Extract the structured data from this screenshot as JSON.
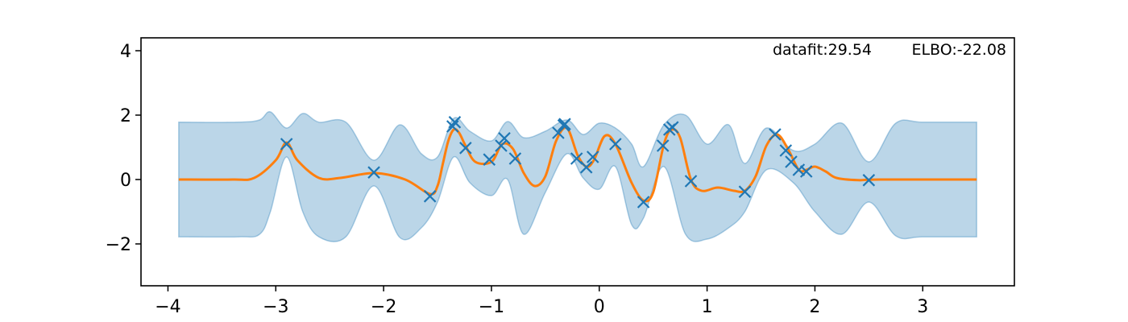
{
  "chart_data": {
    "type": "line",
    "title": "",
    "xlabel": "",
    "ylabel": "",
    "xlim": [
      -4.25,
      3.85
    ],
    "ylim": [
      -3.3,
      4.4
    ],
    "x_ticks": [
      -4,
      -3,
      -2,
      -1,
      0,
      1,
      2,
      3
    ],
    "x_tick_labels": [
      "−4",
      "−3",
      "−2",
      "−1",
      "0",
      "1",
      "2",
      "3"
    ],
    "y_ticks": [
      -2,
      0,
      2,
      4
    ],
    "y_tick_labels": [
      "−2",
      "0",
      "2",
      "4"
    ],
    "grid": false,
    "legend": "none",
    "annotations": [
      {
        "label": "datafit:29.54"
      },
      {
        "label": "ELBO:-22.08"
      }
    ],
    "colors": {
      "mean": "#ff7f0e",
      "band_fill": "#1f77b4",
      "points": "#1f77b4"
    },
    "observations": {
      "x": [
        -2.9,
        -2.09,
        -1.57,
        -1.36,
        -1.34,
        -1.24,
        -1.02,
        -0.91,
        -0.88,
        -0.78,
        -0.38,
        -0.33,
        -0.32,
        -0.21,
        -0.12,
        -0.06,
        0.15,
        0.41,
        0.59,
        0.65,
        0.68,
        0.85,
        1.35,
        1.63,
        1.73,
        1.78,
        1.85,
        1.92,
        2.5
      ],
      "y": [
        1.1,
        0.22,
        -0.52,
        1.65,
        1.78,
        0.98,
        0.62,
        1.05,
        1.28,
        0.65,
        1.45,
        1.68,
        1.72,
        0.65,
        0.38,
        0.7,
        1.1,
        -0.7,
        1.05,
        1.55,
        1.62,
        -0.05,
        -0.38,
        1.4,
        0.9,
        0.55,
        0.3,
        0.25,
        -0.02
      ]
    },
    "mean": {
      "x": [
        -3.9,
        -3.4,
        -3.2,
        -3.0,
        -2.9,
        -2.8,
        -2.6,
        -2.4,
        -2.09,
        -1.8,
        -1.57,
        -1.5,
        -1.45,
        -1.4,
        -1.35,
        -1.3,
        -1.24,
        -1.15,
        -1.0,
        -0.9,
        -0.8,
        -0.7,
        -0.6,
        -0.5,
        -0.4,
        -0.3,
        -0.2,
        -0.12,
        -0.05,
        0.05,
        0.15,
        0.3,
        0.41,
        0.5,
        0.6,
        0.67,
        0.75,
        0.85,
        0.95,
        1.1,
        1.25,
        1.35,
        1.45,
        1.55,
        1.65,
        1.75,
        1.85,
        1.92,
        2.0,
        2.1,
        2.2,
        2.4,
        2.6,
        3.5
      ],
      "y": [
        0.0,
        0.0,
        0.05,
        0.6,
        1.15,
        0.6,
        0.05,
        0.05,
        0.2,
        0.0,
        -0.45,
        -0.2,
        0.5,
        1.2,
        1.55,
        1.45,
        1.05,
        0.55,
        0.55,
        1.1,
        0.95,
        0.2,
        -0.2,
        0.1,
        1.2,
        1.6,
        0.75,
        0.4,
        0.6,
        1.35,
        1.1,
        -0.1,
        -0.65,
        -0.4,
        1.1,
        1.55,
        1.3,
        0.0,
        -0.35,
        -0.25,
        -0.35,
        -0.35,
        0.1,
        1.05,
        1.4,
        0.95,
        0.3,
        0.3,
        0.4,
        0.25,
        0.05,
        -0.02,
        0.0,
        0.0
      ]
    },
    "band": {
      "x": [
        -3.9,
        -3.35,
        -3.15,
        -3.05,
        -2.9,
        -2.75,
        -2.6,
        -2.35,
        -2.09,
        -1.85,
        -1.65,
        -1.5,
        -1.35,
        -1.2,
        -1.0,
        -0.85,
        -0.7,
        -0.5,
        -0.3,
        -0.15,
        0.0,
        0.15,
        0.3,
        0.41,
        0.6,
        0.8,
        1.0,
        1.2,
        1.35,
        1.55,
        1.8,
        2.0,
        2.25,
        2.5,
        2.75,
        3.0,
        3.5
      ],
      "upper": [
        1.78,
        1.78,
        1.85,
        2.1,
        1.6,
        2.05,
        1.78,
        1.78,
        0.6,
        1.7,
        0.8,
        0.7,
        1.9,
        1.5,
        1.2,
        1.8,
        1.3,
        1.5,
        1.85,
        1.4,
        1.75,
        1.6,
        1.1,
        0.4,
        1.7,
        2.0,
        1.1,
        1.7,
        0.5,
        1.6,
        0.9,
        1.1,
        1.75,
        0.55,
        1.75,
        1.78,
        1.78
      ],
      "lower": [
        -1.78,
        -1.78,
        -1.7,
        -1.0,
        0.7,
        -1.0,
        -1.78,
        -1.78,
        -0.2,
        -1.8,
        -1.5,
        -0.7,
        0.7,
        -0.1,
        -0.5,
        0.0,
        -1.7,
        -0.4,
        0.8,
        0.05,
        -0.3,
        0.4,
        -1.4,
        -1.2,
        0.4,
        -1.7,
        -1.85,
        -1.5,
        -1.0,
        0.3,
        -0.1,
        -1.0,
        -1.7,
        -0.7,
        -1.75,
        -1.78,
        -1.78
      ]
    }
  }
}
